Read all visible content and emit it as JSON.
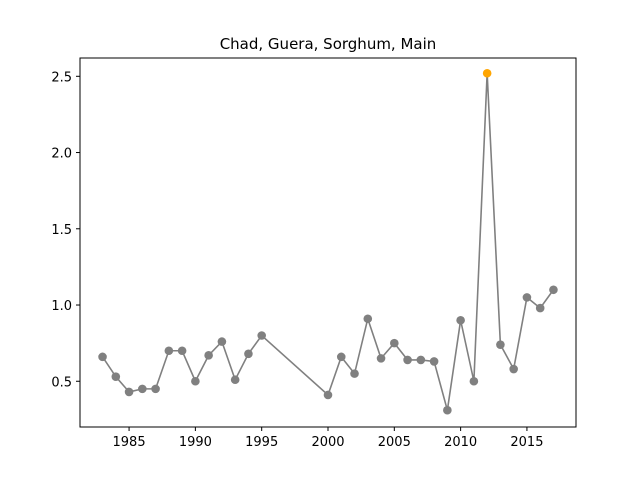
{
  "chart_data": {
    "type": "line",
    "title": "Chad, Guera, Sorghum, Main",
    "xlabel": "",
    "ylabel": "",
    "xlim": [
      1981.3,
      2018.7
    ],
    "ylim": [
      0.2,
      2.62
    ],
    "xticks": [
      1985,
      1990,
      1995,
      2000,
      2005,
      2010,
      2015
    ],
    "yticks": [
      0.5,
      1.0,
      1.5,
      2.0,
      2.5
    ],
    "ytick_labels": [
      "0.5",
      "1.0",
      "1.5",
      "2.0",
      "2.5"
    ],
    "grid": false,
    "series_color": "#808080",
    "highlight_color": "#FFA500",
    "highlight_year": 2012,
    "series": [
      {
        "x": [
          1983,
          1984,
          1985,
          1986,
          1987,
          1988,
          1989,
          1990,
          1991,
          1992,
          1993,
          1994,
          1995,
          2000,
          2001,
          2002,
          2003,
          2004,
          2005,
          2006,
          2007,
          2008,
          2009,
          2010,
          2011,
          2012,
          2013,
          2014,
          2015,
          2016,
          2017
        ],
        "y": [
          0.66,
          0.53,
          0.43,
          0.45,
          0.45,
          0.7,
          0.7,
          0.5,
          0.67,
          0.76,
          0.51,
          0.68,
          0.8,
          0.41,
          0.66,
          0.55,
          0.91,
          0.65,
          0.75,
          0.64,
          0.64,
          0.63,
          0.31,
          0.9,
          0.5,
          2.52,
          0.74,
          0.58,
          1.05,
          0.98,
          1.1
        ]
      }
    ]
  }
}
